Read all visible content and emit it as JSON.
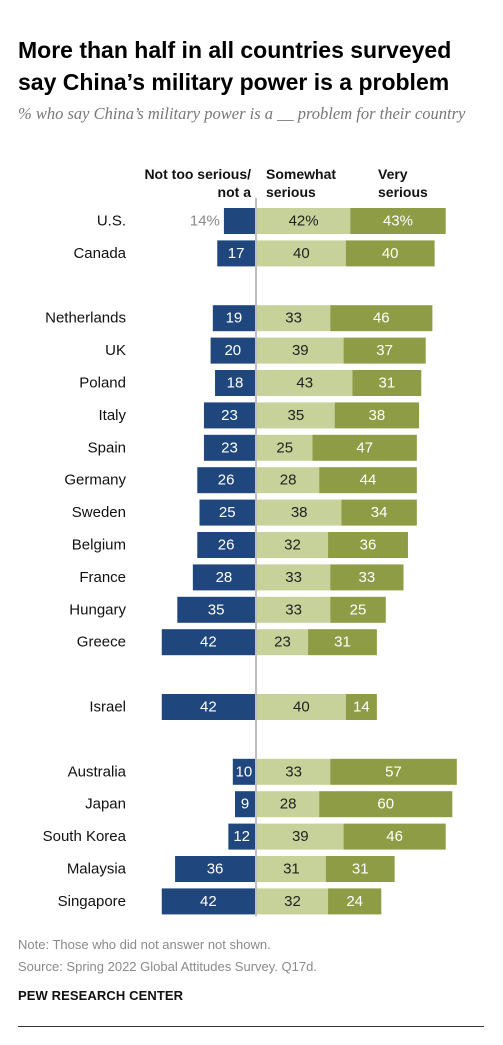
{
  "header": {
    "title": "More than half in all countries surveyed say China’s military power is a problem",
    "subtitle": "% who say China’s military power is a __ problem for their country"
  },
  "columns": {
    "negative": "Not too serious/\nnot a",
    "somewhat": "Somewhat\nserious",
    "very": "Very\nserious"
  },
  "footer": {
    "note": "Note: Those who did not answer not shown.",
    "source": "Source: Spring 2022 Global Attitudes Survey. Q17d.",
    "org": "PEW RESEARCH CENTER"
  },
  "colors": {
    "not_serious": "#1f477d",
    "somewhat": "#c7d19a",
    "very": "#8e9d45",
    "axis": "#a9a9a9",
    "first_neg_label": "#8a8a8a"
  },
  "chart_data": {
    "type": "bar",
    "orientation": "horizontal-diverging",
    "categories": [
      "U.S.",
      "Canada",
      "Netherlands",
      "UK",
      "Poland",
      "Italy",
      "Spain",
      "Germany",
      "Sweden",
      "Belgium",
      "France",
      "Hungary",
      "Greece",
      "Israel",
      "Australia",
      "Japan",
      "South Korea",
      "Malaysia",
      "Singapore"
    ],
    "groups": [
      2,
      11,
      1,
      5
    ],
    "series": [
      {
        "name": "Not too serious/not a",
        "values": [
          14,
          17,
          19,
          20,
          18,
          23,
          23,
          26,
          25,
          26,
          28,
          35,
          42,
          42,
          10,
          9,
          12,
          36,
          42
        ]
      },
      {
        "name": "Somewhat serious",
        "values": [
          42,
          40,
          33,
          39,
          43,
          35,
          25,
          28,
          38,
          32,
          33,
          33,
          23,
          40,
          33,
          28,
          39,
          31,
          32
        ]
      },
      {
        "name": "Very serious",
        "values": [
          43,
          40,
          46,
          37,
          31,
          38,
          47,
          44,
          34,
          36,
          33,
          25,
          31,
          14,
          57,
          60,
          46,
          31,
          24
        ]
      }
    ],
    "value_labels": [
      [
        "14%",
        "42%",
        "43%"
      ]
    ]
  }
}
